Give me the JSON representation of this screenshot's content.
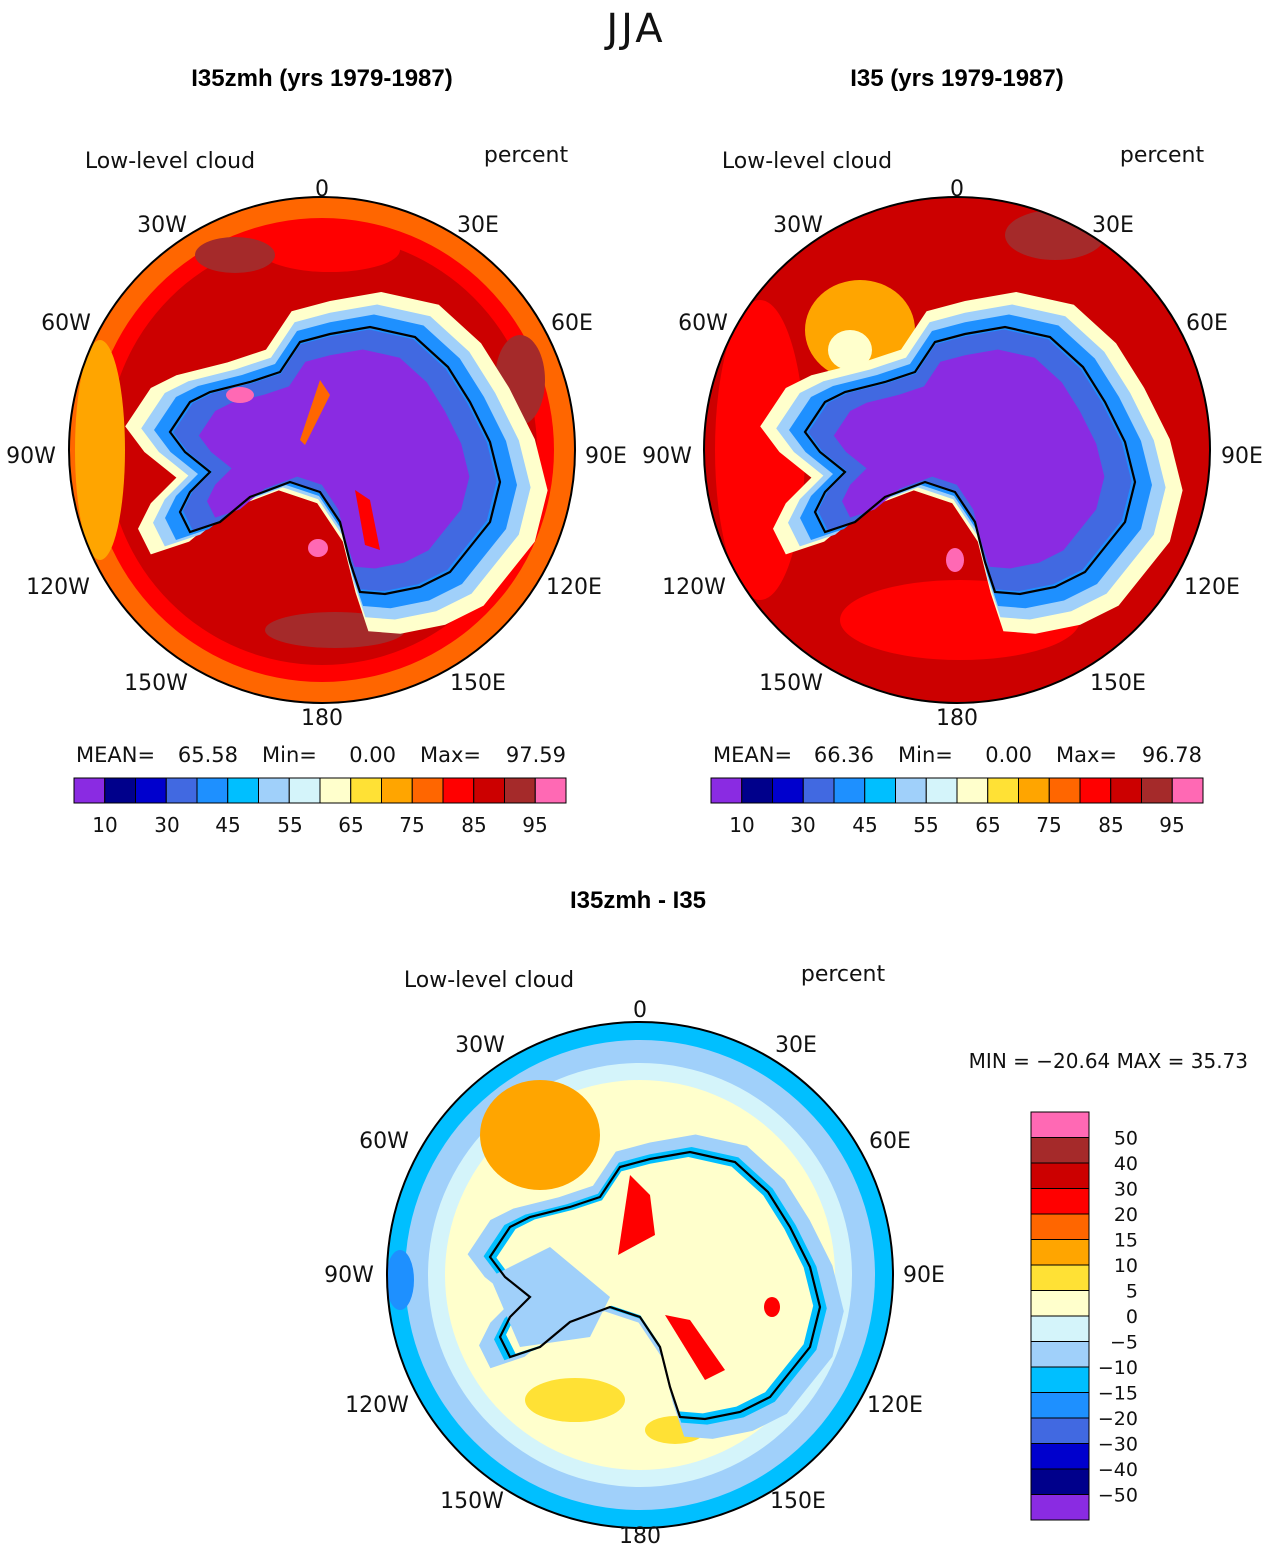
{
  "figure_title": "JJA",
  "colors": {
    "palette": [
      "#8a2be2",
      "#00008b",
      "#0000cd",
      "#4169e1",
      "#1e90ff",
      "#00bfff",
      "#a0d0fa",
      "#d4f4fa",
      "#ffffcc",
      "#ffe135",
      "#ffa500",
      "#ff6600",
      "#ff0000",
      "#cc0000",
      "#a52a2a",
      "#ff69b4"
    ],
    "map_border": "#000000",
    "coast": "#000000"
  },
  "panels": [
    {
      "title": "I35zmh (yrs 1979-1987)",
      "field_label": "Low-level cloud",
      "units": "percent",
      "lon_labels": [
        "0",
        "30E",
        "60E",
        "90E",
        "120E",
        "150E",
        "180",
        "150W",
        "120W",
        "90W",
        "60W",
        "30W"
      ],
      "stats": {
        "mean_label": "MEAN=",
        "mean": "65.58",
        "min_label": "Min=",
        "min": "0.00",
        "max_label": "Max=",
        "max": "97.59"
      },
      "colorbar_labels": [
        "10",
        "30",
        "45",
        "55",
        "65",
        "75",
        "85",
        "95"
      ],
      "fill": {
        "ocean_outer": "#ff6600",
        "ocean": "#cc0000",
        "ice_ring": "#ffe135",
        "continent": "#8a2be2",
        "coast_band": "#4169e1"
      }
    },
    {
      "title": "I35 (yrs 1979-1987)",
      "field_label": "Low-level cloud",
      "units": "percent",
      "lon_labels": [
        "0",
        "30E",
        "60E",
        "90E",
        "120E",
        "150E",
        "180",
        "150W",
        "120W",
        "90W",
        "60W",
        "30W"
      ],
      "stats": {
        "mean_label": "MEAN=",
        "mean": "66.36",
        "min_label": "Min=",
        "min": "0.00",
        "max_label": "Max=",
        "max": "96.78"
      },
      "colorbar_labels": [
        "10",
        "30",
        "45",
        "55",
        "65",
        "75",
        "85",
        "95"
      ],
      "fill": {
        "ocean_outer": "#cc0000",
        "ocean": "#cc0000",
        "ice_ring": "#ffe135",
        "continent": "#8a2be2",
        "coast_band": "#4169e1"
      }
    }
  ],
  "diff_panel": {
    "title": "I35zmh - I35",
    "field_label": "Low-level cloud",
    "units": "percent",
    "lon_labels": [
      "0",
      "30E",
      "60E",
      "90E",
      "120E",
      "150E",
      "180",
      "150W",
      "120W",
      "90W",
      "60W",
      "30W"
    ],
    "min_max_text": "MIN = −20.64 MAX =  35.73",
    "colorbar_labels": [
      "50",
      "40",
      "30",
      "20",
      "15",
      "10",
      "5",
      "0",
      "−5",
      "−10",
      "−15",
      "−20",
      "−30",
      "−40",
      "−50"
    ],
    "colorbar_colors": [
      "#ff69b4",
      "#a52a2a",
      "#cc0000",
      "#ff0000",
      "#ff6600",
      "#ffa500",
      "#ffe135",
      "#ffffcc",
      "#d4f4fa",
      "#a0d0fa",
      "#00bfff",
      "#1e90ff",
      "#4169e1",
      "#0000cd",
      "#00008b",
      "#8a2be2"
    ]
  }
}
